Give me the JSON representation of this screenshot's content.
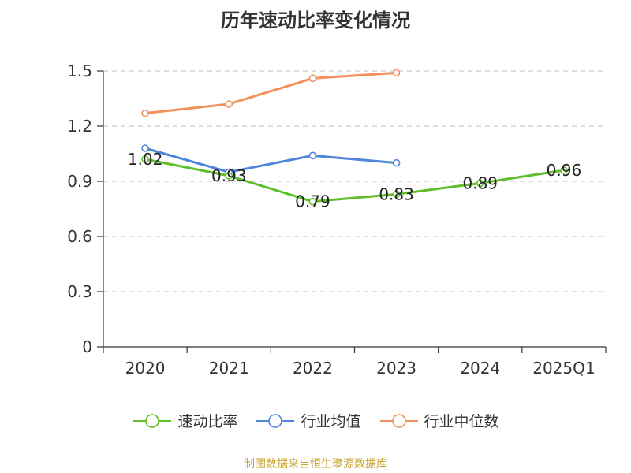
{
  "chart_data": {
    "type": "line",
    "title": "历年速动比率变化情况",
    "categories": [
      "2020",
      "2021",
      "2022",
      "2023",
      "2024",
      "2025Q1"
    ],
    "ylim": [
      0,
      1.5
    ],
    "yticks": [
      "0",
      "0.3",
      "0.6",
      "0.9",
      "1.2",
      "1.5"
    ],
    "grid": true,
    "legend_position": "bottom",
    "series": [
      {
        "name": "速动比率",
        "color": "#5fbf2a",
        "values": [
          1.02,
          0.93,
          0.79,
          0.83,
          0.89,
          0.96
        ],
        "labels": [
          "1.02",
          "0.93",
          "0.79",
          "0.83",
          "0.89",
          "0.96"
        ]
      },
      {
        "name": "行业均值",
        "color": "#4f86d9",
        "values": [
          1.08,
          0.95,
          1.04,
          1.0,
          null,
          null
        ]
      },
      {
        "name": "行业中位数",
        "color": "#f3915b",
        "values": [
          1.27,
          1.32,
          1.46,
          1.49,
          null,
          null
        ]
      }
    ]
  },
  "footer": {
    "source": "制图数据来自恒生聚源数据库"
  }
}
